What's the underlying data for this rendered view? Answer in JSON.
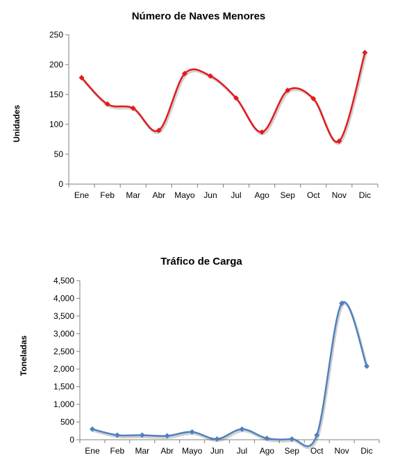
{
  "chart_data": [
    {
      "type": "line",
      "title": "Número de Naves Menores",
      "ylabel": "Unidades",
      "xlabel": "",
      "categories": [
        "Ene",
        "Feb",
        "Mar",
        "Abr",
        "Mayo",
        "Jun",
        "Jul",
        "Ago",
        "Sep",
        "Oct",
        "Nov",
        "Dic"
      ],
      "series": [
        {
          "values": [
            178,
            134,
            127,
            90,
            185,
            181,
            144,
            87,
            157,
            143,
            72,
            220
          ],
          "color": "#e31a1c"
        }
      ],
      "ylim": [
        0,
        250
      ],
      "yticks": [
        0,
        50,
        100,
        150,
        200,
        250
      ],
      "ytick_labels": [
        "0",
        "50",
        "100",
        "150",
        "200",
        "250"
      ],
      "grid": false,
      "smooth": true
    },
    {
      "type": "line",
      "title": "Tráfico de Carga",
      "ylabel": "Toneladas",
      "xlabel": "",
      "categories": [
        "Ene",
        "Feb",
        "Mar",
        "Abr",
        "Mayo",
        "Jun",
        "Jul",
        "Ago",
        "Sep",
        "Oct",
        "Nov",
        "Dic"
      ],
      "series": [
        {
          "values": [
            300,
            130,
            130,
            110,
            220,
            20,
            300,
            40,
            20,
            130,
            3860,
            2080
          ],
          "color": "#4f81bd"
        }
      ],
      "ylim": [
        0,
        4500
      ],
      "yticks": [
        0,
        500,
        1000,
        1500,
        2000,
        2500,
        3000,
        3500,
        4000,
        4500
      ],
      "ytick_labels": [
        "0",
        "500",
        "1,000",
        "1,500",
        "2,000",
        "2,500",
        "3,000",
        "3,500",
        "4,000",
        "4,500"
      ],
      "grid": false,
      "smooth": true
    }
  ]
}
